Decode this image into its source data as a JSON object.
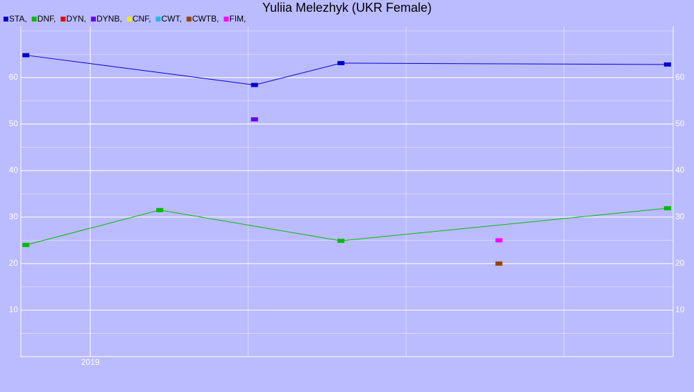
{
  "chart_data": {
    "type": "line",
    "title": "Yuliia Melezhyk (UKR Female)",
    "xlim": [
      2018.89,
      2019.923
    ],
    "xticks": [
      2019
    ],
    "x_grid_step": 0.25,
    "ylim": [
      0,
      71
    ],
    "yticks": [
      10,
      20,
      30,
      40,
      50,
      60
    ],
    "y_minor_step": 5,
    "grid": true,
    "series": [
      {
        "name": "STA,",
        "color": "#0000cc",
        "line": true,
        "x": [
          2018.898,
          2019.26,
          2019.397,
          2019.914
        ],
        "values": [
          64.8,
          58.4,
          63.1,
          62.8
        ]
      },
      {
        "name": "DNF,",
        "color": "#00bb00",
        "line": true,
        "x": [
          2018.898,
          2019.11,
          2019.397,
          2019.914
        ],
        "values": [
          24.0,
          31.5,
          24.9,
          31.9
        ]
      },
      {
        "name": "DYN,",
        "color": "#ee0000",
        "line": false,
        "x": [],
        "values": []
      },
      {
        "name": "DYNB,",
        "color": "#6600ee",
        "line": false,
        "x": [
          2019.26
        ],
        "values": [
          51.0
        ]
      },
      {
        "name": "CNF,",
        "color": "#eeee00",
        "line": false,
        "x": [],
        "values": []
      },
      {
        "name": "CWT,",
        "color": "#22bbdd",
        "line": false,
        "x": [],
        "values": []
      },
      {
        "name": "CWTB,",
        "color": "#994400",
        "line": false,
        "x": [
          2019.647
        ],
        "values": [
          20
        ]
      },
      {
        "name": "FIM,",
        "color": "#ff00ff",
        "line": false,
        "x": [
          2019.647
        ],
        "values": [
          25
        ]
      }
    ]
  }
}
